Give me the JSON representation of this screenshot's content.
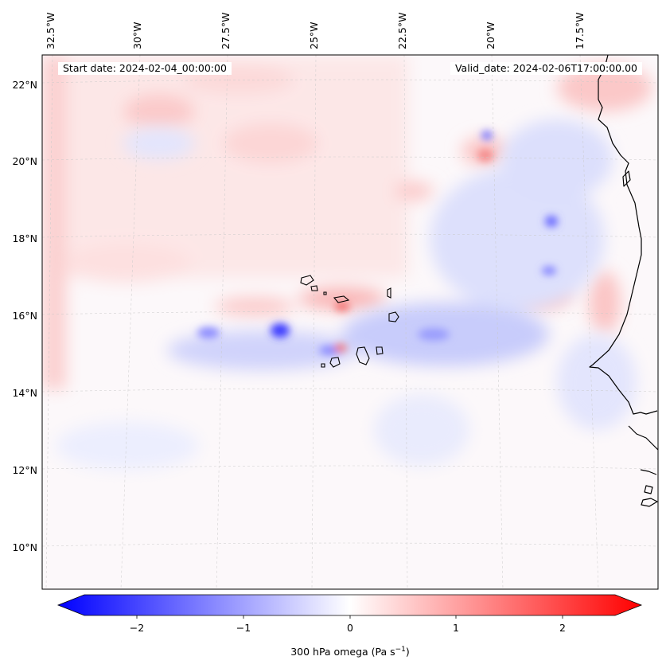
{
  "map": {
    "start_label": "Start date: 2024-02-04_00:00:00",
    "valid_label": "Valid_date: 2024-02-06T17:00:00.00",
    "top_lon_labels": [
      "32.5°W",
      "30°W",
      "27.5°W",
      "25°W",
      "22.5°W",
      "20°W",
      "17.5°W"
    ],
    "left_lat_labels": [
      "22°N",
      "20°N",
      "18°N",
      "16°N",
      "14°N",
      "12°N",
      "10°N"
    ],
    "variable": "300 hPa omega"
  },
  "colorbar": {
    "label_main": "300 hPa omega (Pa s",
    "label_sup": "−1",
    "label_close": ")",
    "ticks": [
      "−2",
      "−1",
      "0",
      "1",
      "2"
    ],
    "tick_values": [
      -2,
      -1,
      0,
      1,
      2
    ],
    "range": [
      -2.5,
      2.5
    ],
    "cmap": "bwr",
    "colors": {
      "negative": "#0000ff",
      "zero": "#ffffff",
      "positive": "#ff0000"
    }
  }
}
